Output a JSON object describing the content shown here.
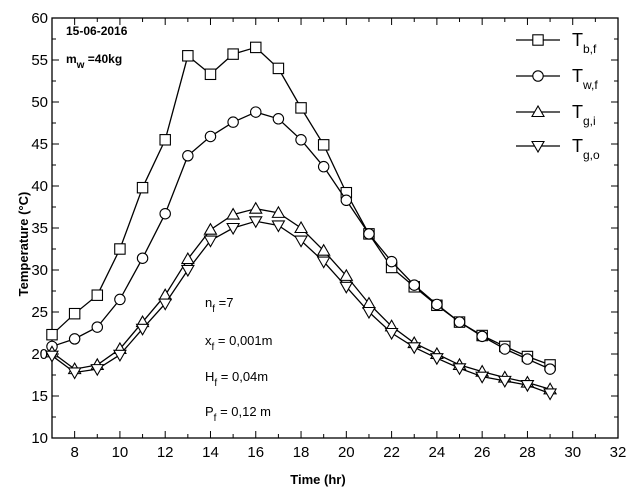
{
  "chart_data": {
    "type": "line",
    "xlabel": "Time (hr)",
    "ylabel": "Temperature (°C)",
    "xlim": [
      7,
      32
    ],
    "ylim": [
      10,
      60
    ],
    "xticks": [
      8,
      10,
      12,
      14,
      16,
      18,
      20,
      22,
      24,
      26,
      28,
      30,
      32
    ],
    "yticks": [
      10,
      15,
      20,
      25,
      30,
      35,
      40,
      45,
      50,
      55,
      60
    ],
    "grid": false,
    "legend_position": "top-right",
    "annotations": {
      "date": "15-06-2016",
      "mw": {
        "main": "m",
        "sub": "w",
        "rest": " =40kg"
      },
      "params": [
        {
          "main": "n",
          "sub": "f",
          "rest": " =7"
        },
        {
          "main": "x",
          "sub": "f",
          "rest": " = 0,001m"
        },
        {
          "main": "H",
          "sub": "f",
          "rest": " = 0,04m"
        },
        {
          "main": "P",
          "sub": "f",
          "rest": " = 0,12 m"
        }
      ]
    },
    "series": [
      {
        "name": "T_b,f",
        "legend_main": "T",
        "legend_sub": "b,f",
        "marker": "square",
        "x": [
          7,
          8,
          9,
          10,
          11,
          12,
          13,
          14,
          15,
          16,
          17,
          18,
          19,
          20,
          21,
          22,
          23,
          24,
          25,
          26,
          27,
          28,
          29
        ],
        "y": [
          22.3,
          24.8,
          27.0,
          32.5,
          39.8,
          45.5,
          55.5,
          53.3,
          55.7,
          56.5,
          54.0,
          49.3,
          44.9,
          39.2,
          34.3,
          30.3,
          28.0,
          25.8,
          23.8,
          22.2,
          20.9,
          19.7,
          18.7
        ]
      },
      {
        "name": "T_w,f",
        "legend_main": "T",
        "legend_sub": "w,f",
        "marker": "circle",
        "x": [
          7,
          8,
          9,
          10,
          11,
          12,
          13,
          14,
          15,
          16,
          17,
          18,
          19,
          20,
          21,
          22,
          23,
          24,
          25,
          26,
          27,
          28,
          29
        ],
        "y": [
          20.9,
          21.8,
          23.2,
          26.5,
          31.4,
          36.7,
          43.6,
          45.9,
          47.6,
          48.8,
          48.0,
          45.5,
          42.3,
          38.3,
          34.3,
          31.0,
          28.2,
          25.9,
          23.8,
          22.1,
          20.6,
          19.4,
          18.2
        ]
      },
      {
        "name": "T_g,i",
        "legend_main": "T",
        "legend_sub": "g,i",
        "marker": "triangle-up",
        "x": [
          7,
          8,
          9,
          10,
          11,
          12,
          13,
          14,
          15,
          16,
          17,
          18,
          19,
          20,
          21,
          22,
          23,
          24,
          25,
          26,
          27,
          28,
          29
        ],
        "y": [
          20.2,
          18.2,
          18.7,
          20.6,
          23.8,
          27.0,
          31.3,
          34.8,
          36.6,
          37.3,
          36.8,
          35.0,
          32.3,
          29.3,
          26.0,
          23.3,
          21.3,
          20.0,
          18.7,
          17.9,
          17.2,
          16.6,
          15.8
        ]
      },
      {
        "name": "T_g,o",
        "legend_main": "T",
        "legend_sub": "g,o",
        "marker": "triangle-down",
        "x": [
          7,
          8,
          9,
          10,
          11,
          12,
          13,
          14,
          15,
          16,
          17,
          18,
          19,
          20,
          21,
          22,
          23,
          24,
          25,
          26,
          27,
          28,
          29
        ],
        "y": [
          19.8,
          17.8,
          18.2,
          19.9,
          23.0,
          26.0,
          30.0,
          33.5,
          35.0,
          35.8,
          35.3,
          33.5,
          31.0,
          28.0,
          25.0,
          22.5,
          20.8,
          19.5,
          18.3,
          17.3,
          16.8,
          16.3,
          15.3
        ]
      }
    ]
  }
}
